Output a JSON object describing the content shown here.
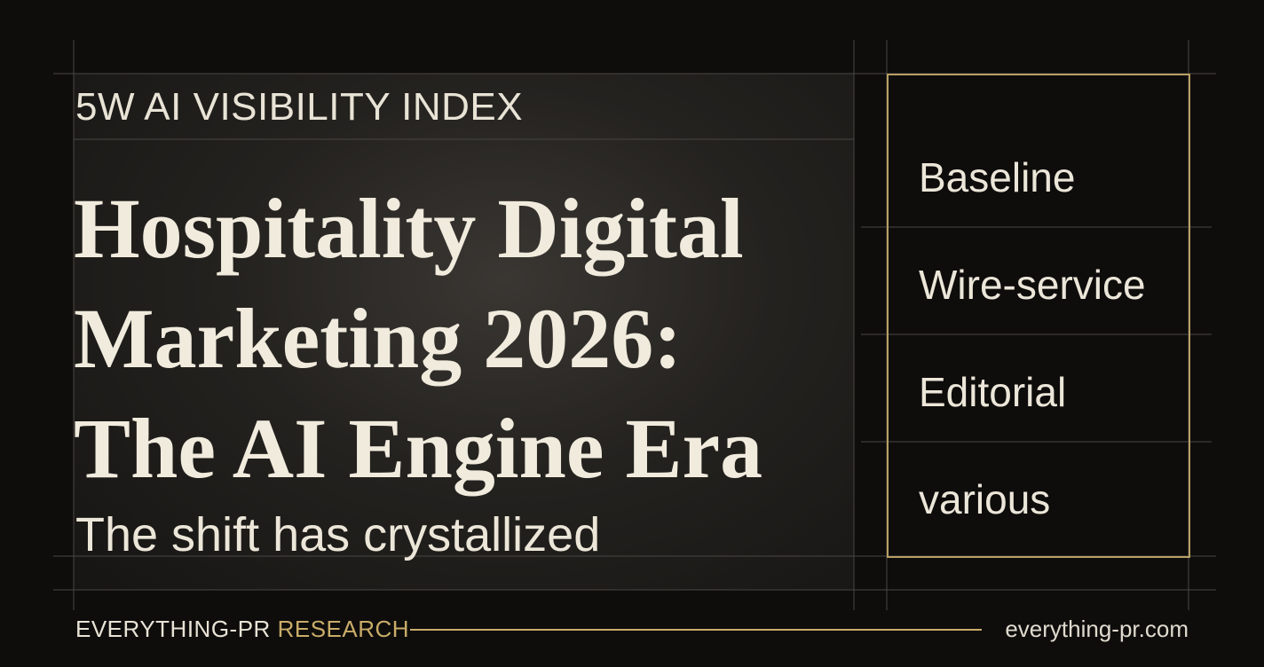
{
  "header": {
    "kicker": "5W AI VISIBILITY INDEX",
    "title_lines": [
      "Hospitality Digital",
      "Marketing 2026:",
      "The AI Engine Era"
    ],
    "subtitle": "The shift has crystallized"
  },
  "panel": {
    "items": [
      "Baseline",
      "Wire-service",
      "Editorial",
      "various"
    ]
  },
  "footer": {
    "brand": "EVERYTHING-PR",
    "brand_accent": "RESEARCH",
    "url": "everything-pr.com"
  }
}
